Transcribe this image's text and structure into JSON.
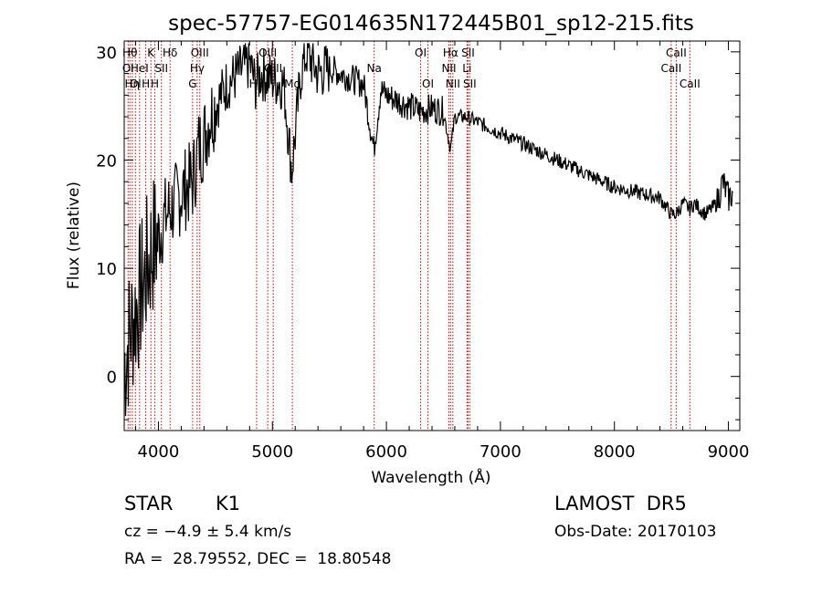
{
  "chart_data": {
    "type": "line",
    "title": "spec-57757-EG014635N172445B01_sp12-215.fits",
    "xlabel": "Wavelength (Å)",
    "ylabel": "Flux (relative)",
    "xlim": [
      3700,
      9100
    ],
    "ylim": [
      -5,
      31
    ],
    "x_ticks": [
      4000,
      5000,
      6000,
      7000,
      8000,
      9000
    ],
    "x_tick_labels": [
      "4000",
      "5000",
      "6000",
      "7000",
      "8000",
      "9000"
    ],
    "y_ticks": [
      0,
      10,
      20,
      30
    ],
    "y_tick_labels": [
      "0",
      "10",
      "20",
      "30"
    ],
    "grid": false,
    "series": [
      {
        "x": [
          3700,
          3750,
          3800,
          3850,
          3900,
          3950,
          4000,
          4050,
          4100,
          4150,
          4200,
          4250,
          4300,
          4350,
          4400,
          4450,
          4500,
          4600,
          4700,
          4800,
          4850,
          4900,
          5000,
          5100,
          5170,
          5250,
          5300,
          5400,
          5500,
          5600,
          5700,
          5800,
          5890,
          5950,
          6000,
          6100,
          6200,
          6300,
          6400,
          6500,
          6563,
          6600,
          6700,
          6800,
          6900,
          7000,
          7200,
          7400,
          7600,
          7800,
          8000,
          8200,
          8400,
          8498,
          8542,
          8600,
          8662,
          8700,
          8800,
          8900,
          8950,
          9000,
          9050
        ],
        "y": [
          1,
          4,
          6,
          8,
          10,
          12,
          13,
          14.5,
          15.5,
          16,
          17,
          17.5,
          18,
          21,
          22,
          24,
          25,
          27,
          28,
          29,
          27,
          28,
          27.5,
          27,
          19,
          28,
          30,
          28,
          28.5,
          28,
          27.5,
          27,
          21,
          26.5,
          26,
          25.5,
          25,
          24.5,
          24.8,
          24.5,
          21,
          24,
          24,
          23.5,
          23,
          22.5,
          21.5,
          20.5,
          19.5,
          18.5,
          17.5,
          17,
          16.5,
          15,
          15,
          16,
          15.5,
          16,
          15,
          16,
          18,
          16.5,
          17
        ]
      }
    ],
    "lines": [
      {
        "x": 3734,
        "label": "Ol",
        "row": 2
      },
      {
        "x": 3750,
        "label": "Hθ",
        "row": 1
      },
      {
        "x": 3771,
        "label": "Hη",
        "row": 3
      },
      {
        "x": 3798,
        "label": "Ol",
        "row": 3
      },
      {
        "x": 3835,
        "label": "HeI",
        "row": 2
      },
      {
        "x": 3889,
        "label": "H",
        "row": 3
      },
      {
        "x": 3934,
        "label": "K",
        "row": 1
      },
      {
        "x": 3969,
        "label": "H",
        "row": 3
      },
      {
        "x": 4026,
        "label": "SII",
        "row": 2
      },
      {
        "x": 4102,
        "label": "Hδ",
        "row": 1
      },
      {
        "x": 4300,
        "label": "G",
        "row": 3
      },
      {
        "x": 4340,
        "label": "Hγ",
        "row": 2
      },
      {
        "x": 4363,
        "label": "OIII",
        "row": 1
      },
      {
        "x": 4861,
        "label": "Hβ",
        "row": 3
      },
      {
        "x": 4959,
        "label": "OIII",
        "row": 1
      },
      {
        "x": 5007,
        "label": "OIII",
        "row": 2
      },
      {
        "x": 5175,
        "label": "Mg",
        "row": 3
      },
      {
        "x": 5893,
        "label": "Na",
        "row": 2
      },
      {
        "x": 6300,
        "label": "OI",
        "row": 1
      },
      {
        "x": 6364,
        "label": "OI",
        "row": 3
      },
      {
        "x": 6548,
        "label": "NII",
        "row": 2
      },
      {
        "x": 6563,
        "label": "Hα",
        "row": 1
      },
      {
        "x": 6583,
        "label": "NII",
        "row": 3
      },
      {
        "x": 6707,
        "label": "Li",
        "row": 2
      },
      {
        "x": 6716,
        "label": "SII",
        "row": 1
      },
      {
        "x": 6731,
        "label": "SII",
        "row": 3
      },
      {
        "x": 8498,
        "label": "CaII",
        "row": 2
      },
      {
        "x": 8542,
        "label": "CaII",
        "row": 1
      },
      {
        "x": 8662,
        "label": "CaII",
        "row": 3
      }
    ]
  },
  "info": {
    "class_label": "STAR",
    "subclass_label": "K1",
    "cz_text": "cz = −4.9 ± 5.4 km/s",
    "coords_text": "RA =  28.79552, DEC =  18.80548",
    "survey_text": "LAMOST  DR5",
    "obsdate_text": "Obs-Date: 20170103"
  },
  "colors": {
    "spectrum": "#000000",
    "line_markers": "#cc0000",
    "axes": "#000000"
  }
}
